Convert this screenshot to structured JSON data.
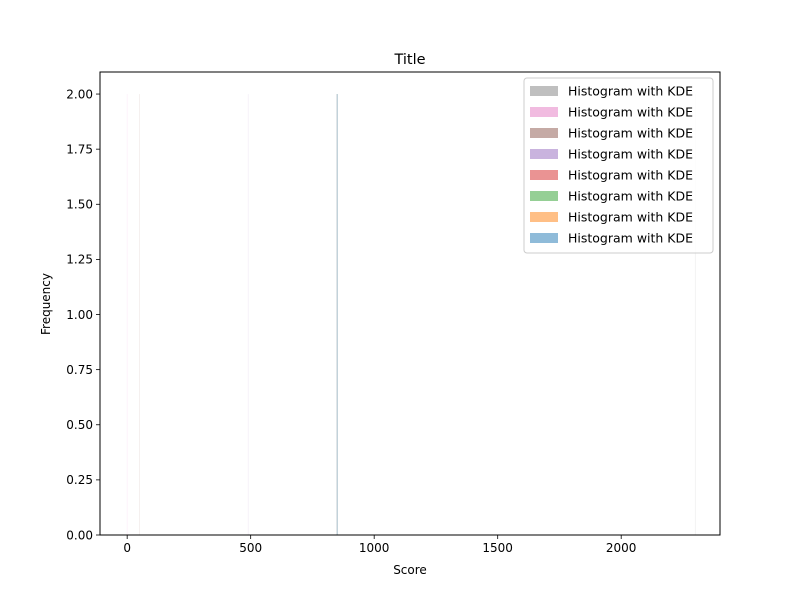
{
  "chart_data": {
    "type": "bar",
    "title": "Title",
    "xlabel": "Score",
    "ylabel": "Frequency",
    "xlim": [
      -110,
      2400
    ],
    "ylim": [
      0,
      2.1
    ],
    "x_ticks": [
      0,
      500,
      1000,
      1500,
      2000
    ],
    "y_ticks": [
      0.0,
      0.25,
      0.5,
      0.75,
      1.0,
      1.25,
      1.5,
      1.75,
      2.0
    ],
    "y_tick_labels": [
      "0.00",
      "0.25",
      "0.50",
      "0.75",
      "1.00",
      "1.25",
      "1.50",
      "1.75",
      "2.00"
    ],
    "legend_position": "top-right",
    "grid": false,
    "series": [
      {
        "name": "Histogram with KDE",
        "color": "#7f7f7f",
        "bars": [
          {
            "x": 2300,
            "y": 2.0
          }
        ]
      },
      {
        "name": "Histogram with KDE",
        "color": "#e377c2",
        "bars": [
          {
            "x": 0,
            "y": 2.0
          }
        ]
      },
      {
        "name": "Histogram with KDE",
        "color": "#8c564b",
        "bars": [
          {
            "x": 50,
            "y": 2.0
          }
        ]
      },
      {
        "name": "Histogram with KDE",
        "color": "#9467bd",
        "bars": [
          {
            "x": 490,
            "y": 2.0
          }
        ]
      },
      {
        "name": "Histogram with KDE",
        "color": "#d62728",
        "bars": [
          {
            "x": 850,
            "y": 2.0
          }
        ]
      },
      {
        "name": "Histogram with KDE",
        "color": "#2ca02c",
        "bars": [
          {
            "x": 850,
            "y": 2.0
          }
        ]
      },
      {
        "name": "Histogram with KDE",
        "color": "#ff7f0e",
        "bars": [
          {
            "x": 850,
            "y": 2.0
          }
        ]
      },
      {
        "name": "Histogram with KDE",
        "color": "#1f77b4",
        "bars": [
          {
            "x": 850,
            "y": 2.0
          }
        ]
      }
    ]
  }
}
